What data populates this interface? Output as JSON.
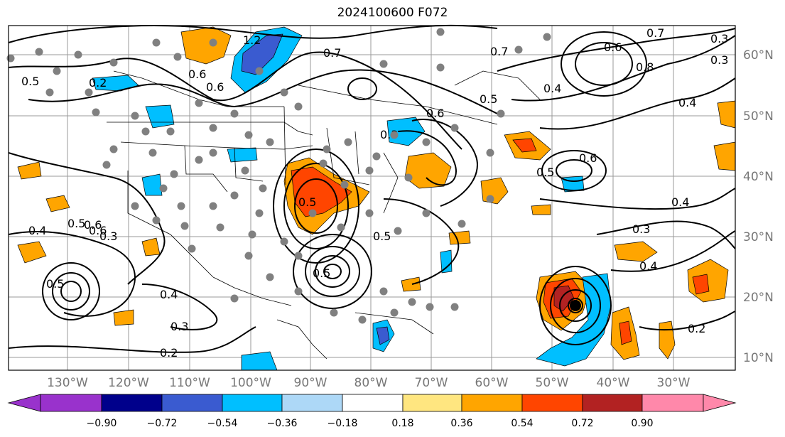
{
  "title": "2024100600 F072",
  "lon_labels": [
    "130°W",
    "120°W",
    "110°W",
    "100°W",
    "90°W",
    "80°W",
    "70°W",
    "60°W",
    "50°W",
    "40°W",
    "30°W"
  ],
  "lat_labels": [
    "60°N",
    "50°N",
    "40°N",
    "30°N",
    "20°N",
    "10°N"
  ],
  "colorbar": {
    "ticks": [
      "−0.90",
      "−0.72",
      "−0.54",
      "−0.36",
      "−0.18",
      "0.18",
      "0.36",
      "0.54",
      "0.72",
      "0.90"
    ],
    "colors": [
      "#9932cc",
      "#00008b",
      "#3a5bd0",
      "#00bfff",
      "#add8f7",
      "#ffffff",
      "#ffe680",
      "#ffa500",
      "#ff4500",
      "#b22222",
      "#ff88aa"
    ]
  },
  "contour_labels": [
    "1.2",
    "0.7",
    "0.7",
    "0.6",
    "0.5",
    "0.6",
    "0.8",
    "0.3",
    "0.5",
    "0.2",
    "0.6",
    "0.4",
    "0.3",
    "0.6",
    "0.5",
    "0.4",
    "0.3",
    "0.4",
    "0.5",
    "0.2",
    "0.3",
    "0.4",
    "0.5",
    "0.6",
    "0.5",
    "0.5",
    "0.4",
    "0.3",
    "0.2",
    "0.3",
    "0.4",
    "0.5",
    "0.6",
    "0.6",
    "0.7"
  ],
  "station_marker": "gray-dot",
  "storm_marker": "hurricane-center"
}
